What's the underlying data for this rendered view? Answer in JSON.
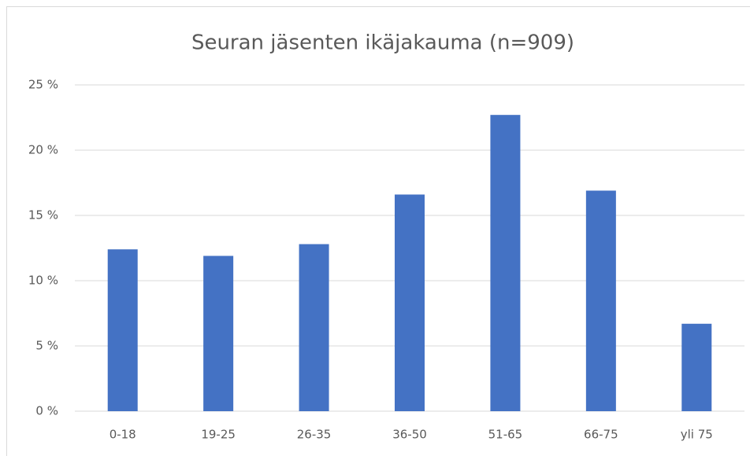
{
  "chart_data": {
    "type": "bar",
    "title": "Seuran jäsenten ikäjakauma (n=909)",
    "categories": [
      "0-18",
      "19-25",
      "26-35",
      "36-50",
      "51-65",
      "66-75",
      "yli 75"
    ],
    "values": [
      12.4,
      11.9,
      12.8,
      16.6,
      22.7,
      16.9,
      6.7
    ],
    "color": "#4472c4",
    "ylim": [
      0,
      25
    ],
    "yticks": [
      {
        "value": 0,
        "label": "0 %"
      },
      {
        "value": 5,
        "label": "5 %"
      },
      {
        "value": 10,
        "label": "10 %"
      },
      {
        "value": 15,
        "label": "15 %"
      },
      {
        "value": 20,
        "label": "20 %"
      },
      {
        "value": 25,
        "label": "25 %"
      }
    ],
    "grid": true
  }
}
